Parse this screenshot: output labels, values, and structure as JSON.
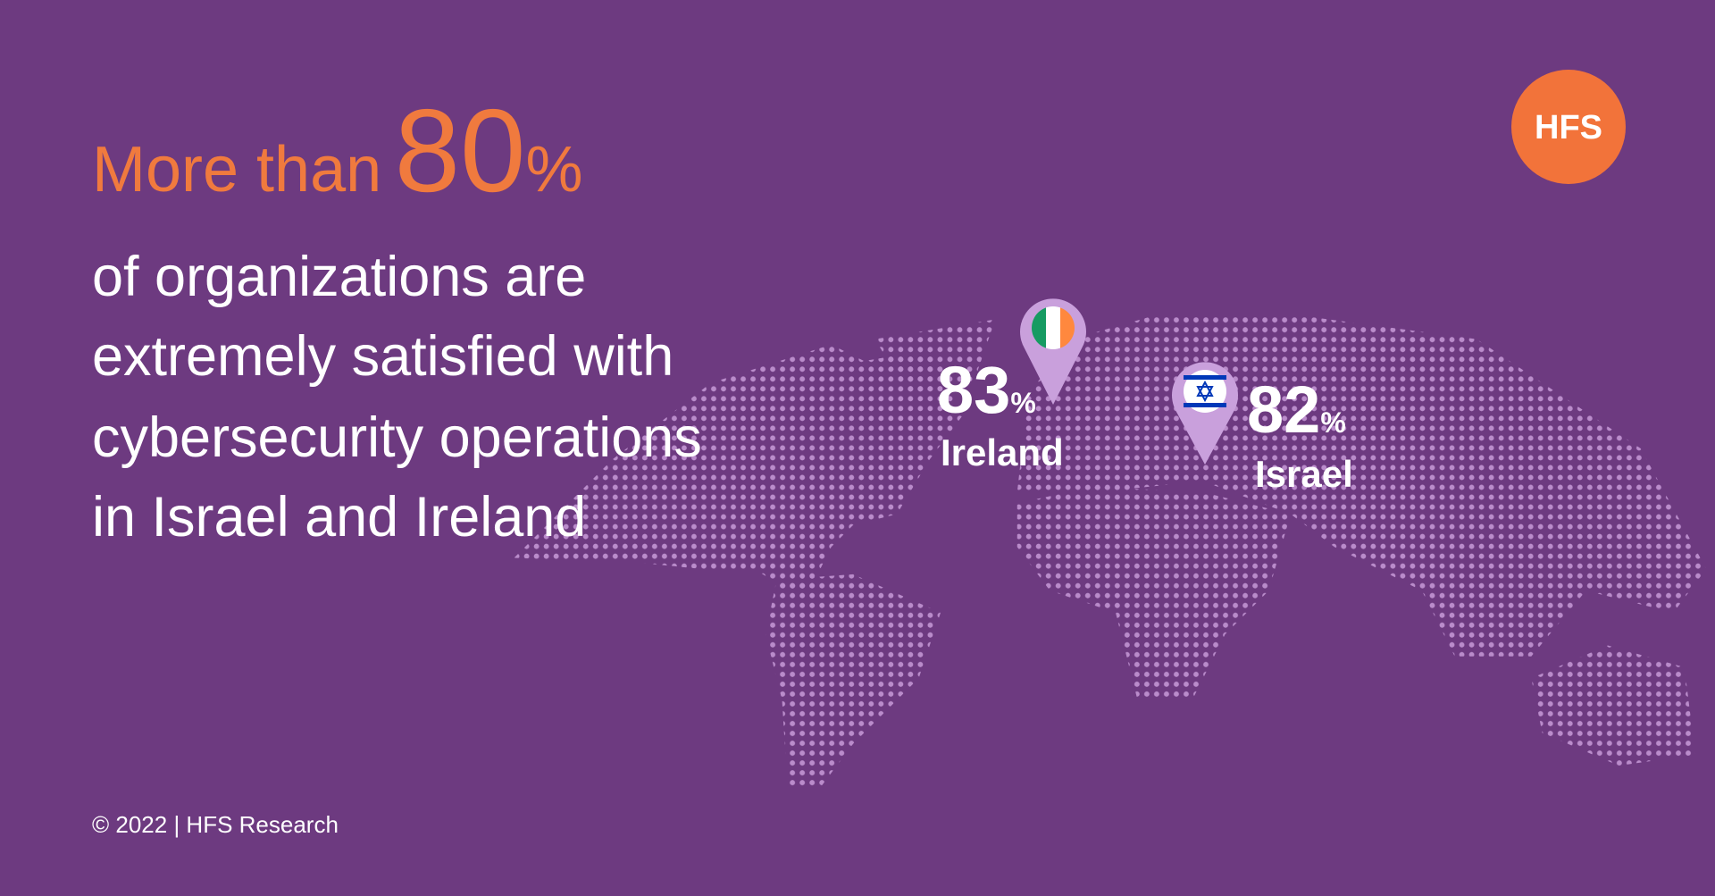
{
  "headline": {
    "prefix": "More than",
    "number": "80",
    "unit": "%"
  },
  "body": [
    "of organizations are",
    "extremely satisfied with",
    "cybersecurity operations",
    "in Israel and Ireland"
  ],
  "stats": [
    {
      "number": "83",
      "unit": "%",
      "country": "Ireland"
    },
    {
      "number": "82",
      "unit": "%",
      "country": "Israel"
    }
  ],
  "logo": "HFS",
  "footer": "© 2022 | HFS Research"
}
